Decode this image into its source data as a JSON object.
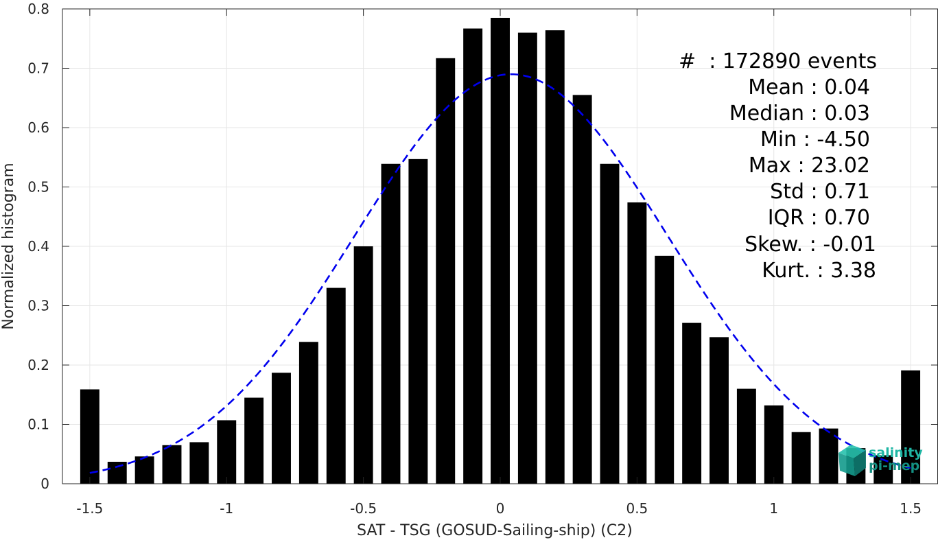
{
  "colors": {
    "bar": "#000000",
    "fit_curve": "#0000ee",
    "grid": "#e6e6e6",
    "axis": "#262626",
    "logo": "#1fb6a4"
  },
  "chart_data": {
    "type": "bar",
    "title": "",
    "xlabel": "SAT - TSG (GOSUD-Sailing-ship) (C2)",
    "ylabel": "Normalized histogram",
    "xlim": [
      -1.6,
      1.6
    ],
    "ylim": [
      0,
      0.8
    ],
    "grid": true,
    "x_ticks": [
      "-1.5",
      "-1",
      "-0.5",
      "0",
      "0.5",
      "1",
      "1.5"
    ],
    "y_ticks": [
      "0",
      "0.1",
      "0.2",
      "0.3",
      "0.4",
      "0.5",
      "0.6",
      "0.7",
      "0.8"
    ],
    "bar_width": 0.07,
    "bins": [
      {
        "x": -1.5,
        "y": 0.159
      },
      {
        "x": -1.4,
        "y": 0.037
      },
      {
        "x": -1.3,
        "y": 0.046
      },
      {
        "x": -1.2,
        "y": 0.065
      },
      {
        "x": -1.1,
        "y": 0.07
      },
      {
        "x": -1.0,
        "y": 0.107
      },
      {
        "x": -0.9,
        "y": 0.145
      },
      {
        "x": -0.8,
        "y": 0.187
      },
      {
        "x": -0.7,
        "y": 0.239
      },
      {
        "x": -0.6,
        "y": 0.33
      },
      {
        "x": -0.5,
        "y": 0.4
      },
      {
        "x": -0.4,
        "y": 0.539
      },
      {
        "x": -0.3,
        "y": 0.547
      },
      {
        "x": -0.2,
        "y": 0.717
      },
      {
        "x": -0.1,
        "y": 0.767
      },
      {
        "x": 0.0,
        "y": 0.785
      },
      {
        "x": 0.1,
        "y": 0.76
      },
      {
        "x": 0.2,
        "y": 0.764
      },
      {
        "x": 0.3,
        "y": 0.655
      },
      {
        "x": 0.4,
        "y": 0.539
      },
      {
        "x": 0.5,
        "y": 0.474
      },
      {
        "x": 0.6,
        "y": 0.384
      },
      {
        "x": 0.7,
        "y": 0.271
      },
      {
        "x": 0.8,
        "y": 0.247
      },
      {
        "x": 0.9,
        "y": 0.16
      },
      {
        "x": 1.0,
        "y": 0.132
      },
      {
        "x": 1.1,
        "y": 0.087
      },
      {
        "x": 1.2,
        "y": 0.093
      },
      {
        "x": 1.3,
        "y": 0.06
      },
      {
        "x": 1.4,
        "y": 0.048
      },
      {
        "x": 1.5,
        "y": 0.191
      }
    ],
    "fit": {
      "type": "gaussian",
      "mean": 0.04,
      "std": 0.571,
      "peak": 0.69,
      "x_range": [
        -1.5,
        1.5
      ],
      "style": "dashed"
    }
  },
  "stats": {
    "events": "#  : 172890 events",
    "mean": "Mean : 0.04",
    "median": "Median : 0.03",
    "min": "Min : -4.50",
    "max": "Max : 23.02",
    "std": "Std : 0.71",
    "iqr": "IQR : 0.70",
    "skew": "Skew. : -0.01",
    "kurt": "Kurt. : 3.38"
  },
  "logo": {
    "line1": "salinity",
    "line2": "pi-mep"
  }
}
